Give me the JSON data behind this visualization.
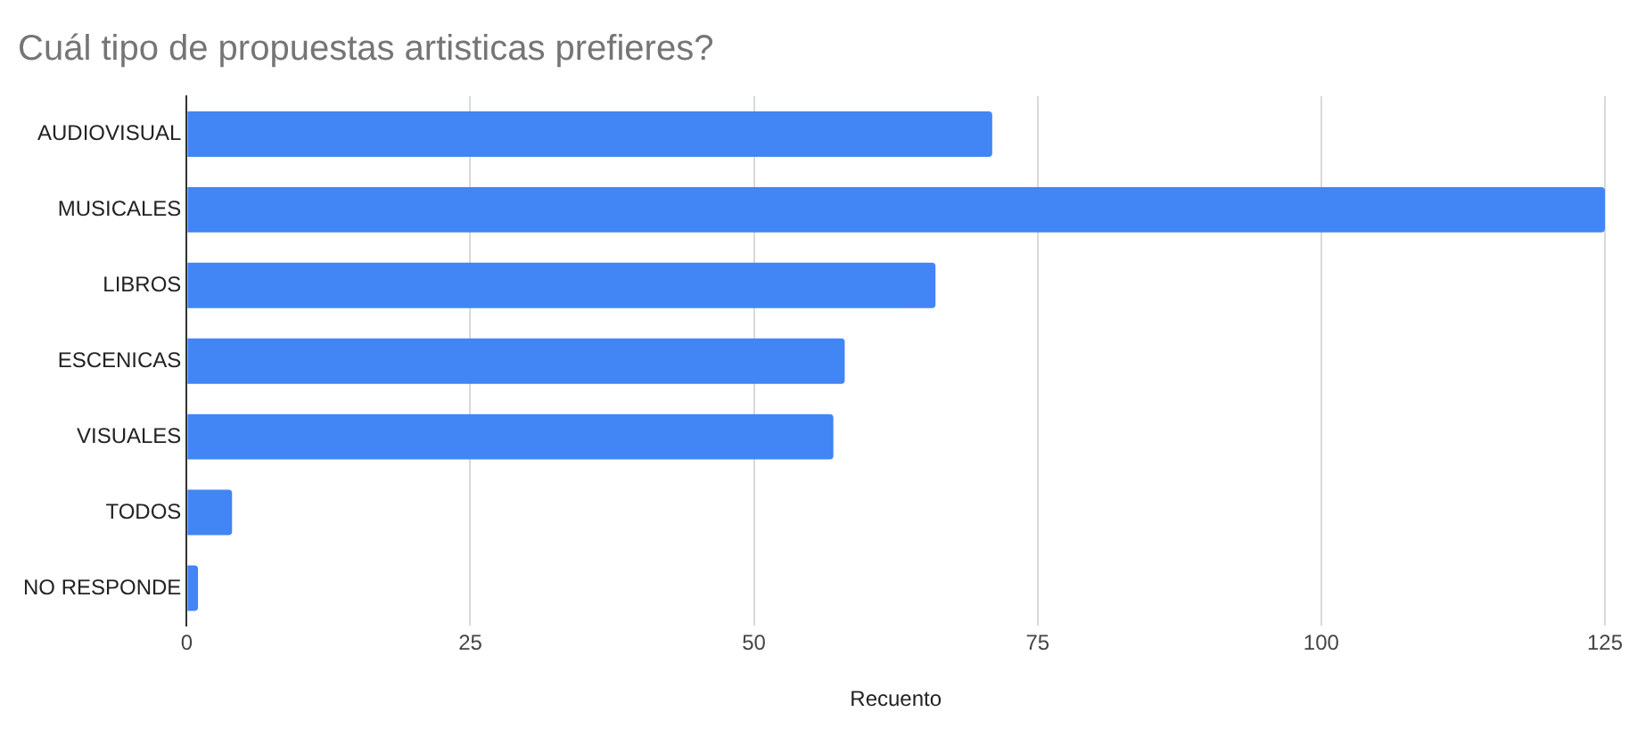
{
  "chart_data": {
    "type": "bar",
    "orientation": "horizontal",
    "title": "Cuál tipo de propuestas artisticas prefieres?",
    "xlabel": "Recuento",
    "categories": [
      "AUDIOVISUAL",
      "MUSICALES",
      "LIBROS",
      "ESCENICAS",
      "VISUALES",
      "TODOS",
      "NO RESPONDE"
    ],
    "values": [
      71,
      125,
      66,
      58,
      57,
      4,
      1
    ],
    "color": "#4285f4",
    "xlim": [
      0,
      125
    ],
    "xticks": [
      0,
      25,
      50,
      75,
      100,
      125
    ],
    "grid": "x"
  }
}
